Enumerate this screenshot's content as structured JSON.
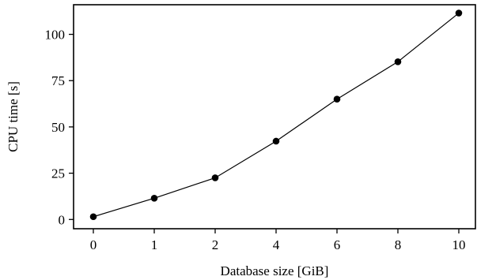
{
  "chart_data": {
    "type": "line",
    "xlabel": "Database size [GiB]",
    "ylabel": "CPU time [s]",
    "x_categories": [
      "0",
      "1",
      "2",
      "4",
      "6",
      "8",
      "10"
    ],
    "y_ticks": [
      0,
      25,
      50,
      75,
      100
    ],
    "ylim": [
      -5,
      116
    ],
    "grid": false,
    "series": [
      {
        "values": [
          1.5,
          11.5,
          22.5,
          42.3,
          65,
          85.2,
          111.5
        ]
      }
    ]
  }
}
